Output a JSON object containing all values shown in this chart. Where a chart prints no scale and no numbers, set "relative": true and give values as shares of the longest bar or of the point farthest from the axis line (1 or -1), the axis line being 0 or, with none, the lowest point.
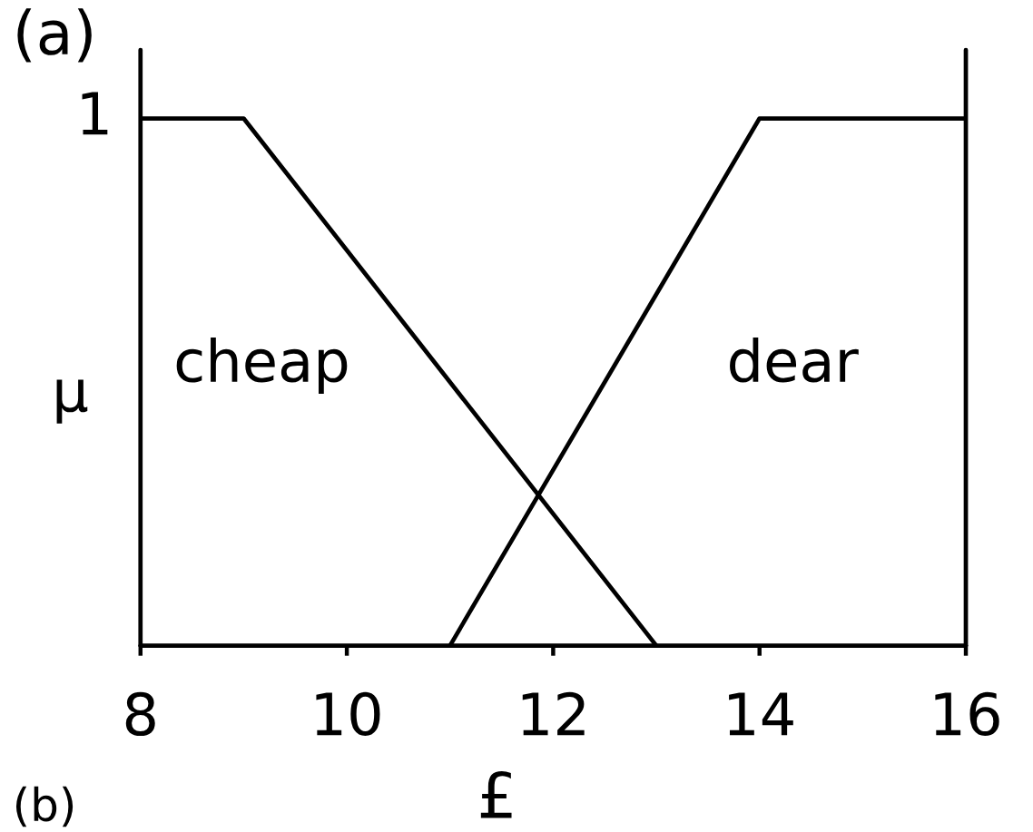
{
  "chart_data": {
    "type": "line",
    "relative": true,
    "title": "(a)",
    "xlabel": "£",
    "ylabel": "μ",
    "annotations": [
      "(b)",
      {
        "text": "1",
        "x": 8,
        "y": 1
      }
    ],
    "xlim": [
      8,
      16
    ],
    "xticks": [
      8,
      10,
      12,
      14,
      16
    ],
    "grid": false,
    "legend": false,
    "marker": "none",
    "line_style": "solid",
    "series": [
      {
        "name": "cheap",
        "color": "#000000",
        "x": [
          8,
          9,
          13
        ],
        "values": [
          1,
          1,
          0
        ]
      },
      {
        "name": "dear",
        "color": "#000000",
        "x": [
          11,
          14,
          16
        ],
        "values": [
          0,
          1,
          1
        ]
      }
    ]
  }
}
